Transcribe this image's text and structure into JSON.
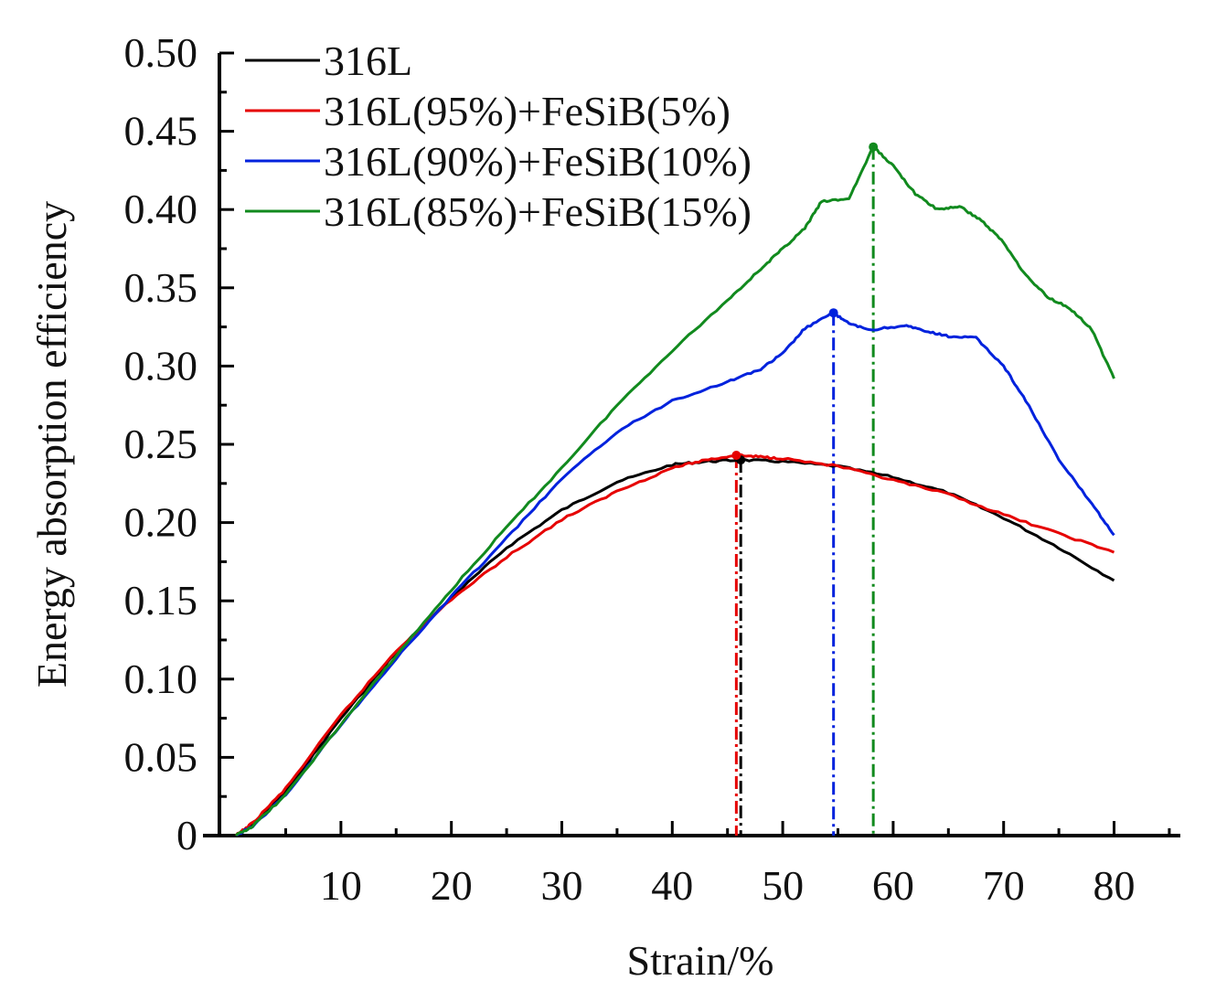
{
  "chart_data": {
    "type": "line",
    "xlabel": "Strain/%",
    "ylabel": "Energy absorption efficiency",
    "xlim": [
      -1,
      86
    ],
    "ylim": [
      0,
      0.5
    ],
    "xticks": [
      10,
      20,
      30,
      40,
      50,
      60,
      70,
      80
    ],
    "yticks": [
      0,
      0.05,
      0.1,
      0.15,
      0.2,
      0.25,
      0.3,
      0.35,
      0.4,
      0.45,
      0.5
    ],
    "ytick_labels": [
      "0",
      "0.05",
      "0.10",
      "0.15",
      "0.20",
      "0.25",
      "0.30",
      "0.35",
      "0.40",
      "0.45",
      "0.50"
    ],
    "xtick_labels": [
      "10",
      "20",
      "30",
      "40",
      "50",
      "60",
      "70",
      "80"
    ],
    "grid": false,
    "legend_position": "top-left",
    "series": [
      {
        "name": "316L",
        "color": "#000000",
        "peak": {
          "x": 46.2,
          "y": 0.24
        },
        "points": [
          [
            0.5,
            0
          ],
          [
            2,
            0.007
          ],
          [
            5,
            0.028
          ],
          [
            10,
            0.075
          ],
          [
            15,
            0.117
          ],
          [
            20,
            0.152
          ],
          [
            25,
            0.184
          ],
          [
            30,
            0.208
          ],
          [
            35,
            0.226
          ],
          [
            40,
            0.237
          ],
          [
            43,
            0.239
          ],
          [
            46.2,
            0.24
          ],
          [
            50,
            0.239
          ],
          [
            55,
            0.236
          ],
          [
            60,
            0.229
          ],
          [
            65,
            0.219
          ],
          [
            70,
            0.203
          ],
          [
            75,
            0.184
          ],
          [
            80,
            0.163
          ]
        ]
      },
      {
        "name": "316L(95%)+FeSiB(5%)",
        "color": "#e60000",
        "peak": {
          "x": 45.8,
          "y": 0.243
        },
        "points": [
          [
            0.5,
            0
          ],
          [
            2,
            0.008
          ],
          [
            5,
            0.03
          ],
          [
            10,
            0.077
          ],
          [
            15,
            0.118
          ],
          [
            20,
            0.151
          ],
          [
            25,
            0.178
          ],
          [
            30,
            0.202
          ],
          [
            35,
            0.22
          ],
          [
            40,
            0.235
          ],
          [
            43,
            0.24
          ],
          [
            45.8,
            0.243
          ],
          [
            48,
            0.242
          ],
          [
            50,
            0.241
          ],
          [
            55,
            0.236
          ],
          [
            60,
            0.227
          ],
          [
            65,
            0.218
          ],
          [
            70,
            0.205
          ],
          [
            75,
            0.193
          ],
          [
            80,
            0.181
          ]
        ]
      },
      {
        "name": "316L(90%)+FeSiB(10%)",
        "color": "#0022dd",
        "peak": {
          "x": 54.6,
          "y": 0.334
        },
        "points": [
          [
            0.5,
            0
          ],
          [
            2,
            0.006
          ],
          [
            5,
            0.026
          ],
          [
            10,
            0.071
          ],
          [
            15,
            0.113
          ],
          [
            20,
            0.153
          ],
          [
            25,
            0.19
          ],
          [
            30,
            0.228
          ],
          [
            35,
            0.258
          ],
          [
            40,
            0.278
          ],
          [
            45,
            0.29
          ],
          [
            48,
            0.298
          ],
          [
            50,
            0.308
          ],
          [
            52,
            0.324
          ],
          [
            54.6,
            0.334
          ],
          [
            56,
            0.327
          ],
          [
            58,
            0.323
          ],
          [
            61,
            0.326
          ],
          [
            63,
            0.322
          ],
          [
            65,
            0.319
          ],
          [
            67.5,
            0.318
          ],
          [
            70,
            0.3
          ],
          [
            72,
            0.278
          ],
          [
            75,
            0.24
          ],
          [
            78,
            0.212
          ],
          [
            80,
            0.192
          ]
        ]
      },
      {
        "name": "316L(85%)+FeSiB(15%)",
        "color": "#118a1e",
        "peak": {
          "x": 58.2,
          "y": 0.44
        },
        "points": [
          [
            0.5,
            0
          ],
          [
            2,
            0.006
          ],
          [
            5,
            0.026
          ],
          [
            10,
            0.071
          ],
          [
            15,
            0.115
          ],
          [
            20,
            0.157
          ],
          [
            25,
            0.197
          ],
          [
            30,
            0.235
          ],
          [
            35,
            0.275
          ],
          [
            40,
            0.31
          ],
          [
            45,
            0.342
          ],
          [
            48,
            0.362
          ],
          [
            50,
            0.375
          ],
          [
            52,
            0.388
          ],
          [
            53.5,
            0.405
          ],
          [
            56,
            0.407
          ],
          [
            58.2,
            0.44
          ],
          [
            60,
            0.428
          ],
          [
            62,
            0.41
          ],
          [
            64,
            0.4
          ],
          [
            66,
            0.402
          ],
          [
            68,
            0.393
          ],
          [
            70,
            0.379
          ],
          [
            72,
            0.358
          ],
          [
            74,
            0.344
          ],
          [
            76,
            0.337
          ],
          [
            78,
            0.323
          ],
          [
            80,
            0.292
          ]
        ]
      }
    ]
  }
}
